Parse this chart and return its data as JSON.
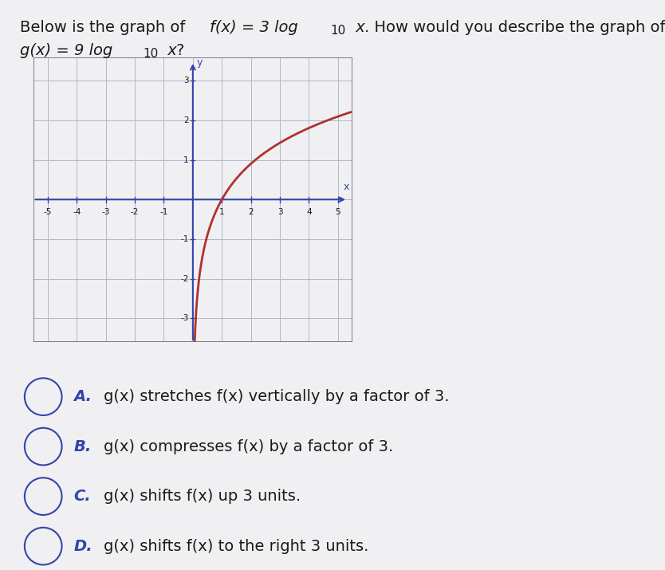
{
  "curve_color": "#b03030",
  "curve_linewidth": 2.0,
  "grid_color": "#b0b8cc",
  "axis_color": "#3344aa",
  "plot_bg_color": "#d8dce8",
  "page_bg": "#f0f0f2",
  "xlim": [
    -5.5,
    5.5
  ],
  "ylim": [
    -3.6,
    3.6
  ],
  "xticks": [
    -5,
    -4,
    -3,
    -2,
    -1,
    1,
    2,
    3,
    4,
    5
  ],
  "yticks": [
    -3,
    -2,
    -1,
    1,
    2,
    3
  ],
  "answers": [
    {
      "label": "A.",
      "text": "g(x) stretches f(x) vertically by a factor of 3."
    },
    {
      "label": "B.",
      "text": "g(x) compresses f(x) by a factor of 3."
    },
    {
      "label": "C.",
      "text": "g(x) shifts f(x) up 3 units."
    },
    {
      "label": "D.",
      "text": "g(x) shifts f(x) to the right 3 units."
    }
  ],
  "text_color": "#1a1a1a",
  "answer_fontsize": 14,
  "title_fontsize": 14
}
